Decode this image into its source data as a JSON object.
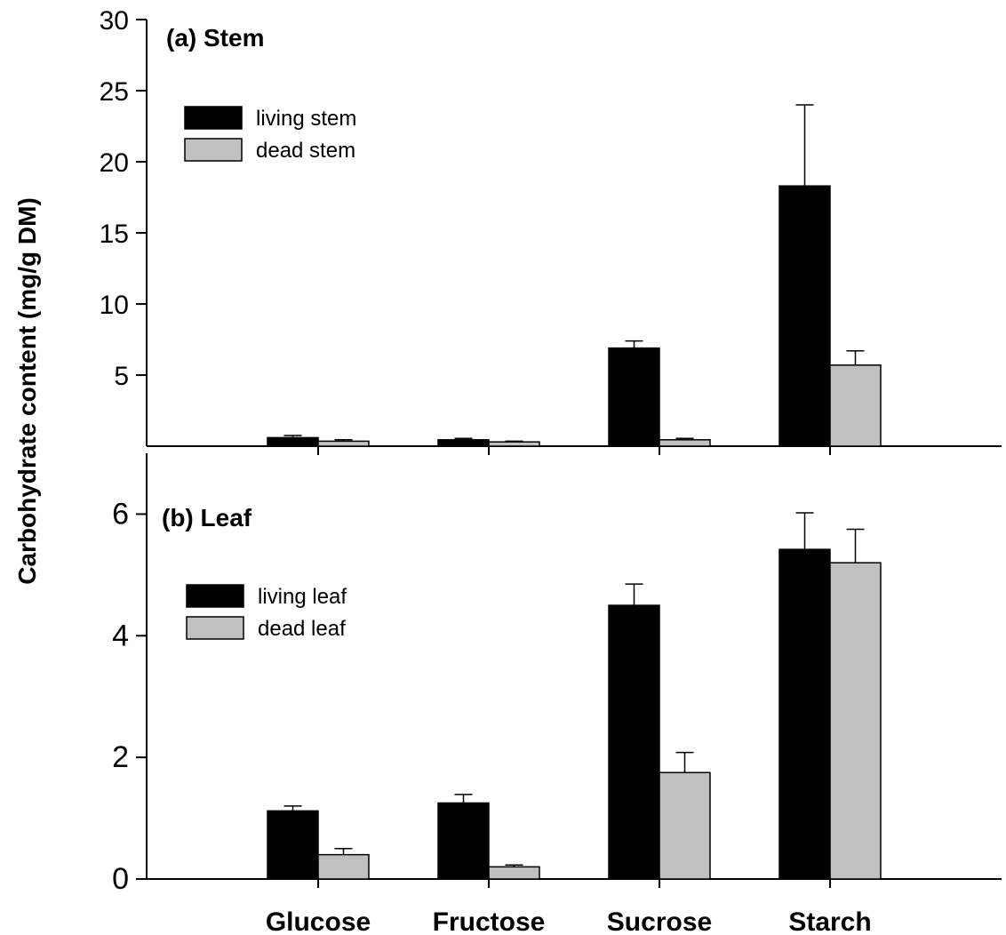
{
  "chart_data": {
    "type": "bar",
    "ylabel": "Carbohydrate content (mg/g DM)",
    "categories": [
      "Glucose",
      "Fructose",
      "Sucrose",
      "Starch"
    ],
    "colors": {
      "living": "#000000",
      "dead": "#c0c0c0"
    },
    "panels": [
      {
        "id": "stem",
        "title": "(a) Stem",
        "ylim": [
          0,
          30
        ],
        "yticks": [
          5,
          10,
          15,
          20,
          25,
          30
        ],
        "legend_placement": "top-left",
        "series": [
          {
            "name": "living stem",
            "values": [
              0.6,
              0.45,
              6.9,
              18.3
            ],
            "errors": [
              0.15,
              0.1,
              0.5,
              5.7
            ]
          },
          {
            "name": "dead stem",
            "values": [
              0.35,
              0.3,
              0.45,
              5.7
            ],
            "errors": [
              0.1,
              0.05,
              0.1,
              1.0
            ]
          }
        ]
      },
      {
        "id": "leaf",
        "title": "(b) Leaf",
        "ylim": [
          0,
          7
        ],
        "yticks": [
          0,
          2,
          4,
          6
        ],
        "legend_placement": "top-left",
        "series": [
          {
            "name": "living leaf",
            "values": [
              1.12,
              1.25,
              4.5,
              5.42
            ],
            "errors": [
              0.08,
              0.14,
              0.35,
              0.6
            ]
          },
          {
            "name": "dead leaf",
            "values": [
              0.4,
              0.2,
              1.75,
              5.2
            ],
            "errors": [
              0.1,
              0.03,
              0.33,
              0.55
            ]
          }
        ]
      }
    ]
  }
}
